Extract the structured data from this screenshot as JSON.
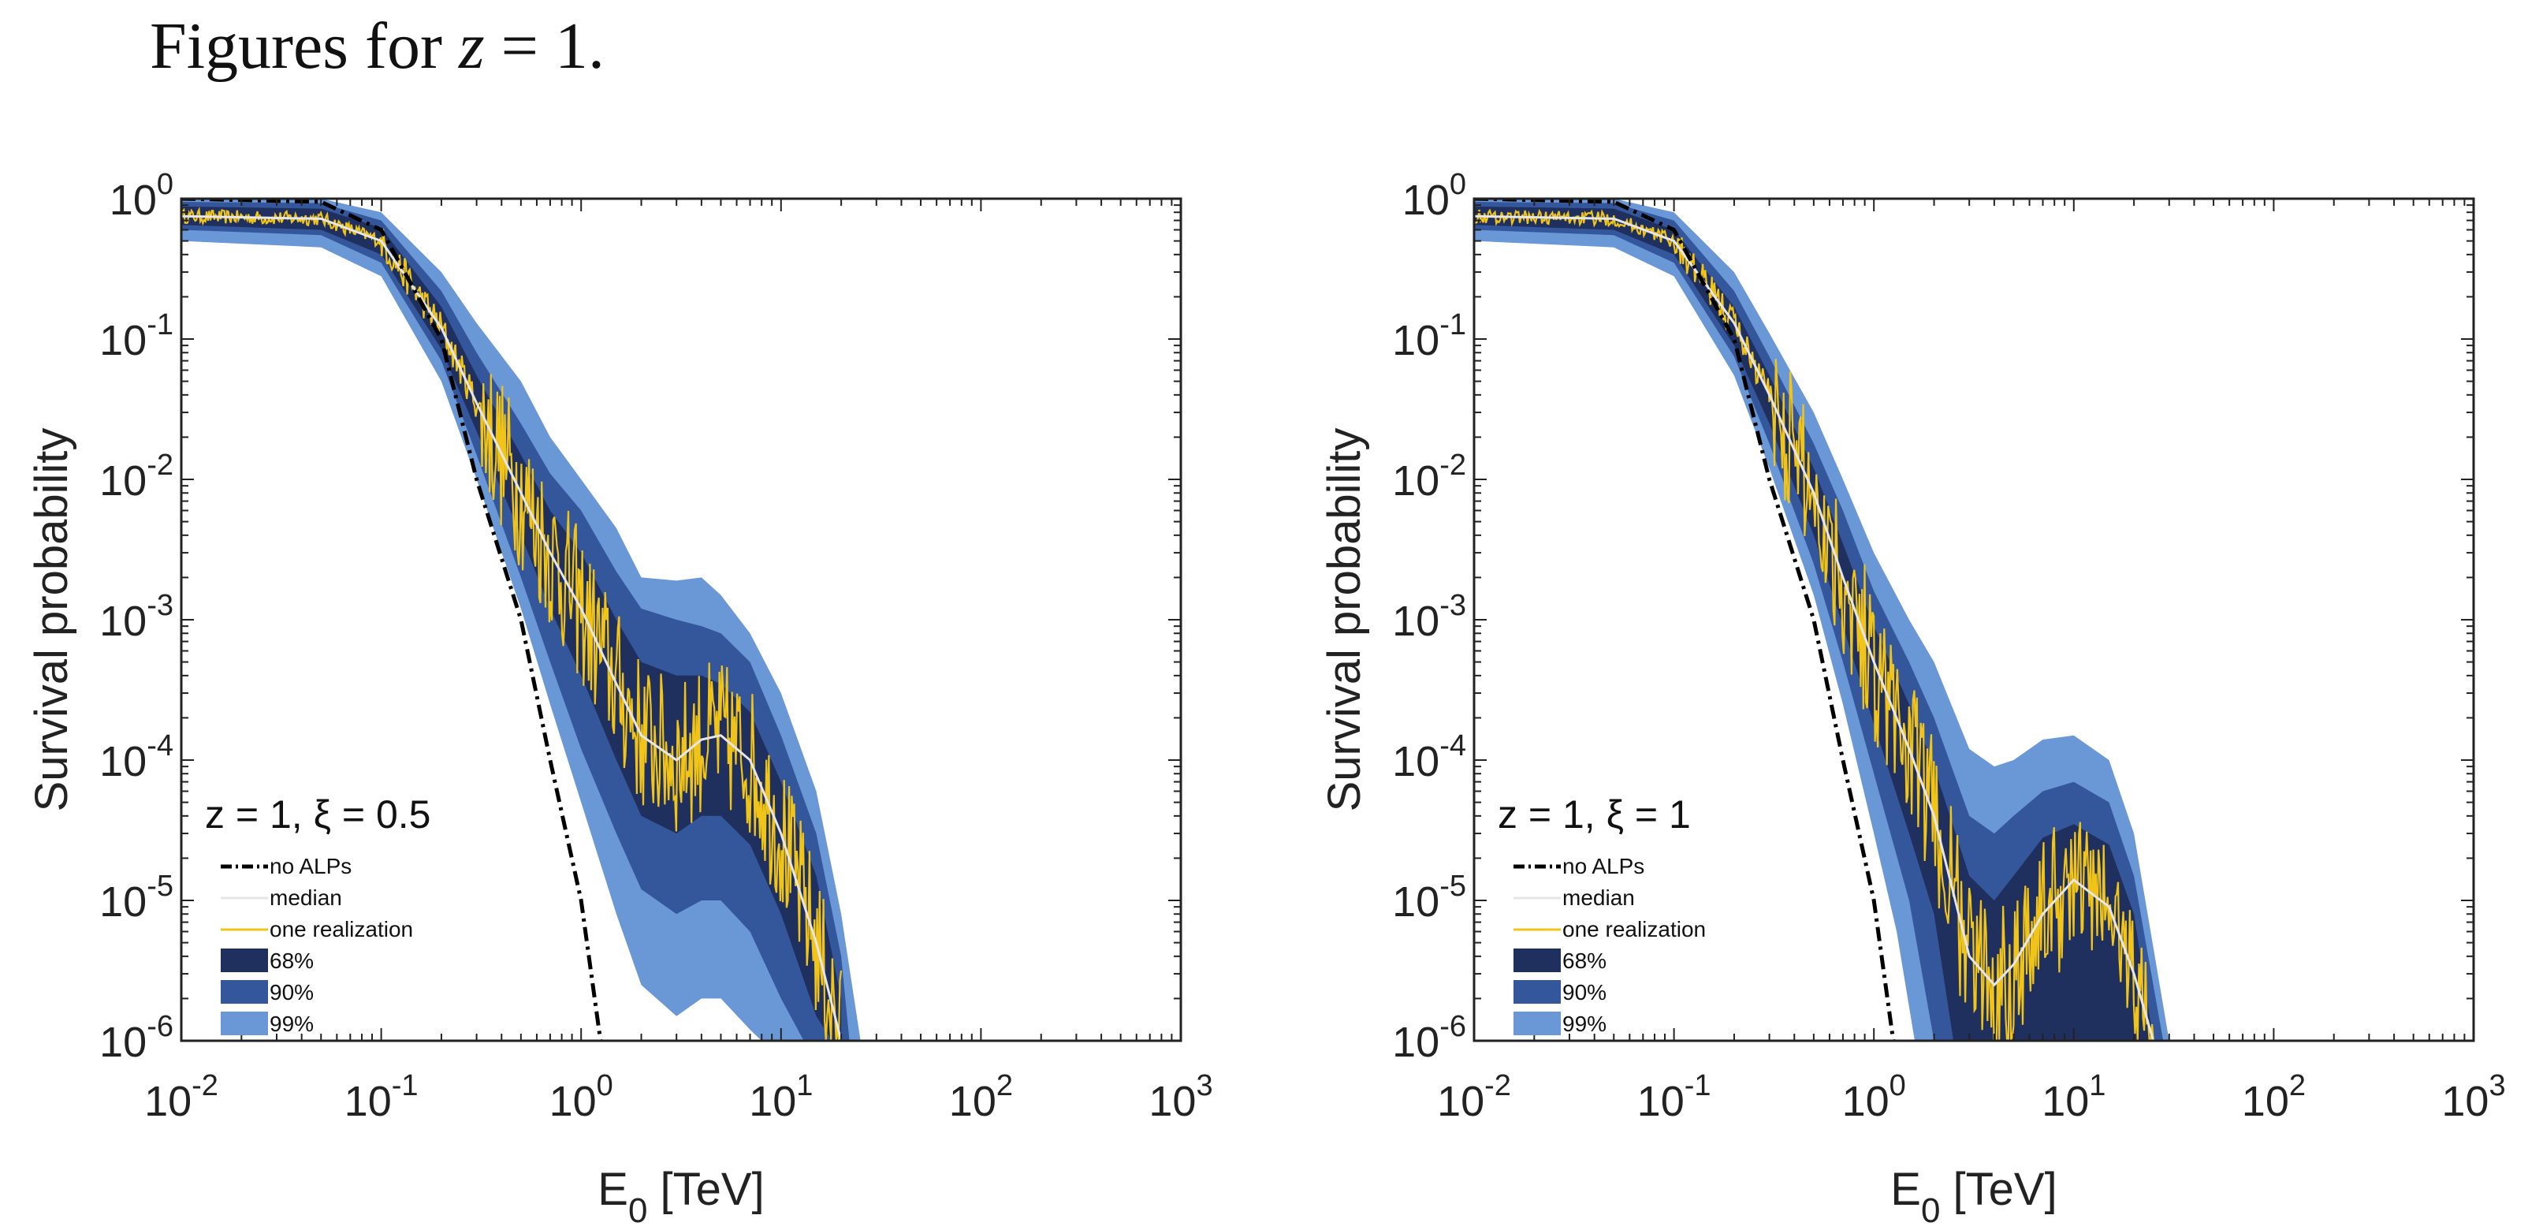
{
  "page": {
    "heading_prefix": "Figures for ",
    "heading_var": "z",
    "heading_suffix": " = 1."
  },
  "legend_labels": {
    "no_alps": "no ALPs",
    "median": "median",
    "one_realization": "one realization",
    "band68": "68%",
    "band90": "90%",
    "band99": "99%"
  },
  "colors": {
    "band68": "#1f2f5e",
    "band90": "#34579c",
    "band99": "#6a97d6",
    "band99_lower": "#8aa0dc",
    "median": "#e6e6e6",
    "realization": "#f0c419",
    "no_alps": "#000000"
  },
  "chart_data": [
    {
      "type": "area",
      "title": "",
      "annotation": "z = 1,  ξ = 0.5",
      "xlabel": "E",
      "xlabel_sub": "0",
      "xlabel_unit": " [TeV]",
      "ylabel": "Survival probability",
      "x_scale": "log",
      "y_scale": "log",
      "xlim": [
        0.01,
        1000
      ],
      "ylim": [
        1e-06,
        1
      ],
      "x_ticks": [
        {
          "base": "10",
          "exp": "-2"
        },
        {
          "base": "10",
          "exp": "-1"
        },
        {
          "base": "10",
          "exp": "0"
        },
        {
          "base": "10",
          "exp": "1"
        },
        {
          "base": "10",
          "exp": "2"
        },
        {
          "base": "10",
          "exp": "3"
        }
      ],
      "y_ticks": [
        {
          "base": "10",
          "exp": "0"
        },
        {
          "base": "10",
          "exp": "-1"
        },
        {
          "base": "10",
          "exp": "-2"
        },
        {
          "base": "10",
          "exp": "-3"
        },
        {
          "base": "10",
          "exp": "-4"
        },
        {
          "base": "10",
          "exp": "-5"
        },
        {
          "base": "10",
          "exp": "-6"
        }
      ],
      "legend_position": "bottom-left",
      "series": {
        "no_alps": {
          "x": [
            0.01,
            0.05,
            0.1,
            0.2,
            0.3,
            0.5,
            0.7,
            1.0,
            1.25
          ],
          "y": [
            1.0,
            0.95,
            0.6,
            0.1,
            0.01,
            0.001,
            0.0001,
            1e-05,
            1e-06
          ]
        },
        "median": {
          "x": [
            0.01,
            0.05,
            0.1,
            0.2,
            0.3,
            0.5,
            0.7,
            1.0,
            1.5,
            2.0,
            3.0,
            4.0,
            5.0,
            7.0,
            10.0,
            15.0,
            20.0
          ],
          "y": [
            0.75,
            0.72,
            0.5,
            0.12,
            0.035,
            0.008,
            0.003,
            0.0012,
            0.00035,
            0.00015,
            0.0001,
            0.00014,
            0.00015,
            0.0001,
            3e-05,
            5e-06,
            1e-06
          ]
        },
        "band68_upper": {
          "x": [
            0.01,
            0.05,
            0.1,
            0.2,
            0.3,
            0.5,
            0.7,
            1.0,
            1.5,
            2.0,
            3.0,
            4.0,
            5.0,
            7.0,
            10.0,
            15.0,
            20.0
          ],
          "y": [
            0.88,
            0.85,
            0.62,
            0.17,
            0.055,
            0.015,
            0.006,
            0.003,
            0.001,
            0.0005,
            0.0004,
            0.0004,
            0.00035,
            0.00022,
            7e-05,
            1.5e-05,
            2e-06
          ]
        },
        "band68_lower": {
          "x": [
            0.01,
            0.05,
            0.1,
            0.2,
            0.3,
            0.5,
            0.7,
            1.0,
            1.5,
            2.0,
            3.0,
            4.0,
            5.0,
            7.0,
            10.0,
            15.0,
            18.0
          ],
          "y": [
            0.65,
            0.6,
            0.4,
            0.085,
            0.022,
            0.004,
            0.0012,
            0.0004,
            0.0001,
            4e-05,
            3e-05,
            4e-05,
            4e-05,
            2.5e-05,
            8e-06,
            1.5e-06,
            1e-06
          ]
        },
        "band90_upper": {
          "x": [
            0.01,
            0.05,
            0.1,
            0.2,
            0.3,
            0.5,
            0.7,
            1.0,
            1.5,
            2.0,
            3.0,
            4.0,
            5.0,
            7.0,
            10.0,
            15.0,
            20.0,
            22.0
          ],
          "y": [
            0.95,
            0.93,
            0.7,
            0.22,
            0.08,
            0.025,
            0.011,
            0.006,
            0.0022,
            0.0012,
            0.001,
            0.0009,
            0.0008,
            0.0005,
            0.00015,
            3e-05,
            4e-06,
            1e-06
          ]
        },
        "band90_lower": {
          "x": [
            0.01,
            0.05,
            0.1,
            0.2,
            0.3,
            0.5,
            0.7,
            1.0,
            1.5,
            2.0,
            3.0,
            4.0,
            5.0,
            7.0,
            10.0,
            13.0
          ],
          "y": [
            0.6,
            0.55,
            0.35,
            0.07,
            0.015,
            0.002,
            0.0005,
            0.00012,
            3e-05,
            1.2e-05,
            8e-06,
            1e-05,
            1e-05,
            6e-06,
            2e-06,
            1e-06
          ]
        },
        "band99_upper": {
          "x": [
            0.01,
            0.05,
            0.1,
            0.2,
            0.3,
            0.5,
            0.7,
            1.0,
            1.5,
            2.0,
            3.0,
            4.0,
            5.0,
            7.0,
            10.0,
            15.0,
            20.0,
            25.0
          ],
          "y": [
            1.0,
            1.0,
            0.8,
            0.3,
            0.13,
            0.05,
            0.02,
            0.01,
            0.0045,
            0.002,
            0.0019,
            0.002,
            0.0015,
            0.0008,
            0.0003,
            6e-05,
            8e-06,
            1e-06
          ]
        },
        "band99_lower": {
          "x": [
            0.01,
            0.05,
            0.1,
            0.2,
            0.3,
            0.5,
            0.7,
            1.0,
            1.5,
            2.0,
            3.0,
            4.0,
            5.0,
            7.0,
            8.0
          ],
          "y": [
            0.5,
            0.45,
            0.28,
            0.05,
            0.01,
            0.0012,
            0.00025,
            5e-05,
            8e-06,
            2.5e-06,
            1.5e-06,
            2e-06,
            2e-06,
            1.2e-06,
            1e-06
          ]
        }
      }
    },
    {
      "type": "area",
      "title": "",
      "annotation": "z = 1,  ξ = 1",
      "xlabel": "E",
      "xlabel_sub": "0",
      "xlabel_unit": " [TeV]",
      "ylabel": "Survival probability",
      "x_scale": "log",
      "y_scale": "log",
      "xlim": [
        0.01,
        1000
      ],
      "ylim": [
        1e-06,
        1
      ],
      "x_ticks": [
        {
          "base": "10",
          "exp": "-2"
        },
        {
          "base": "10",
          "exp": "-1"
        },
        {
          "base": "10",
          "exp": "0"
        },
        {
          "base": "10",
          "exp": "1"
        },
        {
          "base": "10",
          "exp": "2"
        },
        {
          "base": "10",
          "exp": "3"
        }
      ],
      "y_ticks": [
        {
          "base": "10",
          "exp": "0"
        },
        {
          "base": "10",
          "exp": "-1"
        },
        {
          "base": "10",
          "exp": "-2"
        },
        {
          "base": "10",
          "exp": "-3"
        },
        {
          "base": "10",
          "exp": "-4"
        },
        {
          "base": "10",
          "exp": "-5"
        },
        {
          "base": "10",
          "exp": "-6"
        }
      ],
      "legend_position": "bottom-left",
      "series": {
        "no_alps": {
          "x": [
            0.01,
            0.05,
            0.1,
            0.2,
            0.3,
            0.5,
            0.7,
            1.0,
            1.25
          ],
          "y": [
            1.0,
            0.95,
            0.6,
            0.1,
            0.01,
            0.001,
            0.0001,
            1e-05,
            1e-06
          ]
        },
        "median": {
          "x": [
            0.01,
            0.05,
            0.1,
            0.2,
            0.3,
            0.5,
            0.7,
            1.0,
            1.5,
            2.0,
            3.0,
            4.0,
            5.0,
            7.0,
            10.0,
            15.0,
            20.0,
            25.0
          ],
          "y": [
            0.75,
            0.72,
            0.5,
            0.13,
            0.04,
            0.008,
            0.002,
            0.0005,
            0.00012,
            4e-05,
            4e-06,
            2.5e-06,
            3.5e-06,
            8e-06,
            1.4e-05,
            9e-06,
            3e-06,
            1e-06
          ]
        },
        "band68_upper": {
          "x": [
            0.01,
            0.05,
            0.1,
            0.2,
            0.3,
            0.5,
            0.7,
            1.0,
            1.5,
            2.0,
            3.0,
            4.0,
            5.0,
            7.0,
            10.0,
            15.0,
            20.0,
            25.0
          ],
          "y": [
            0.88,
            0.85,
            0.6,
            0.17,
            0.055,
            0.012,
            0.0035,
            0.0009,
            0.00025,
            9e-05,
            1.5e-05,
            1e-05,
            1.5e-05,
            2.8e-05,
            3.5e-05,
            2.5e-05,
            8e-06,
            1e-06
          ]
        },
        "band68_lower": {
          "x": [
            0.01,
            0.05,
            0.1,
            0.2,
            0.3,
            0.5,
            0.7,
            1.0,
            1.5,
            2.0,
            2.5
          ],
          "y": [
            0.65,
            0.6,
            0.4,
            0.09,
            0.025,
            0.004,
            0.0009,
            0.00018,
            3e-05,
            8e-06,
            1e-06
          ]
        },
        "band90_upper": {
          "x": [
            0.01,
            0.05,
            0.1,
            0.2,
            0.3,
            0.5,
            0.7,
            1.0,
            1.5,
            2.0,
            3.0,
            4.0,
            5.0,
            7.0,
            10.0,
            15.0,
            20.0,
            28.0
          ],
          "y": [
            0.95,
            0.93,
            0.7,
            0.22,
            0.075,
            0.018,
            0.006,
            0.0016,
            0.0005,
            0.0002,
            4e-05,
            3e-05,
            4e-05,
            6e-05,
            7e-05,
            5e-05,
            1.5e-05,
            1e-06
          ]
        },
        "band90_lower": {
          "x": [
            0.01,
            0.05,
            0.1,
            0.2,
            0.3,
            0.5,
            0.7,
            1.0,
            1.5,
            2.0
          ],
          "y": [
            0.6,
            0.55,
            0.35,
            0.075,
            0.018,
            0.0025,
            0.0005,
            8e-05,
            1e-05,
            1e-06
          ]
        },
        "band99_upper": {
          "x": [
            0.01,
            0.05,
            0.1,
            0.2,
            0.3,
            0.5,
            0.7,
            1.0,
            1.5,
            2.0,
            3.0,
            4.0,
            5.0,
            7.0,
            10.0,
            15.0,
            20.0,
            30.0
          ],
          "y": [
            1.0,
            1.0,
            0.8,
            0.3,
            0.11,
            0.03,
            0.01,
            0.003,
            0.001,
            0.0005,
            0.00012,
            9e-05,
            0.0001,
            0.00014,
            0.00015,
            0.0001,
            3e-05,
            1e-06
          ]
        },
        "band99_lower": {
          "x": [
            0.01,
            0.05,
            0.1,
            0.2,
            0.3,
            0.5,
            0.7,
            1.0,
            1.3,
            1.6
          ],
          "y": [
            0.5,
            0.45,
            0.28,
            0.055,
            0.012,
            0.0015,
            0.00025,
            3e-05,
            6e-06,
            1e-06
          ]
        }
      }
    }
  ]
}
